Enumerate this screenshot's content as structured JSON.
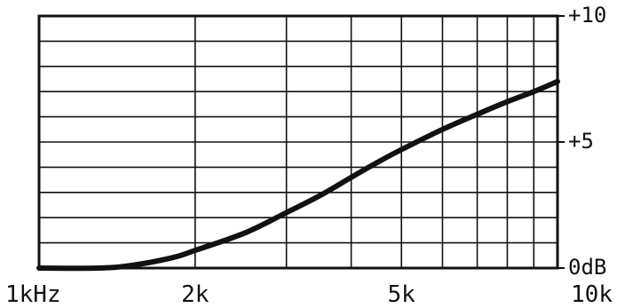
{
  "chart_data": {
    "type": "line",
    "title": "",
    "xlabel": "",
    "ylabel": "",
    "x_scale": "log",
    "xlim": [
      1000,
      10000
    ],
    "ylim": [
      0,
      10
    ],
    "x_tick_labels": [
      {
        "value": 1000,
        "label": "1kHz"
      },
      {
        "value": 2000,
        "label": "2k"
      },
      {
        "value": 5000,
        "label": "5k"
      },
      {
        "value": 10000,
        "label": "10k"
      }
    ],
    "y_tick_labels": [
      {
        "value": 10,
        "label": "+10"
      },
      {
        "value": 5,
        "label": "+5"
      },
      {
        "value": 0,
        "label": "0dB"
      }
    ],
    "x_gridlines": [
      2000,
      3000,
      4000,
      5000,
      6000,
      7000,
      8000,
      9000
    ],
    "y_gridlines": [
      1,
      2,
      3,
      4,
      5,
      6,
      7,
      8,
      9
    ],
    "grid": true,
    "series": [
      {
        "values": [
          {
            "x": 1000,
            "y": 0.0
          },
          {
            "x": 1300,
            "y": 0.0
          },
          {
            "x": 1500,
            "y": 0.1
          },
          {
            "x": 1800,
            "y": 0.4
          },
          {
            "x": 2000,
            "y": 0.7
          },
          {
            "x": 2500,
            "y": 1.4
          },
          {
            "x": 3000,
            "y": 2.2
          },
          {
            "x": 3500,
            "y": 2.9
          },
          {
            "x": 4000,
            "y": 3.6
          },
          {
            "x": 4500,
            "y": 4.2
          },
          {
            "x": 5000,
            "y": 4.7
          },
          {
            "x": 6000,
            "y": 5.5
          },
          {
            "x": 7000,
            "y": 6.1
          },
          {
            "x": 8000,
            "y": 6.6
          },
          {
            "x": 9000,
            "y": 7.0
          },
          {
            "x": 10000,
            "y": 7.4
          }
        ]
      }
    ],
    "colors": {
      "line": "#111111",
      "grid": "#111111",
      "background": "#ffffff"
    }
  }
}
